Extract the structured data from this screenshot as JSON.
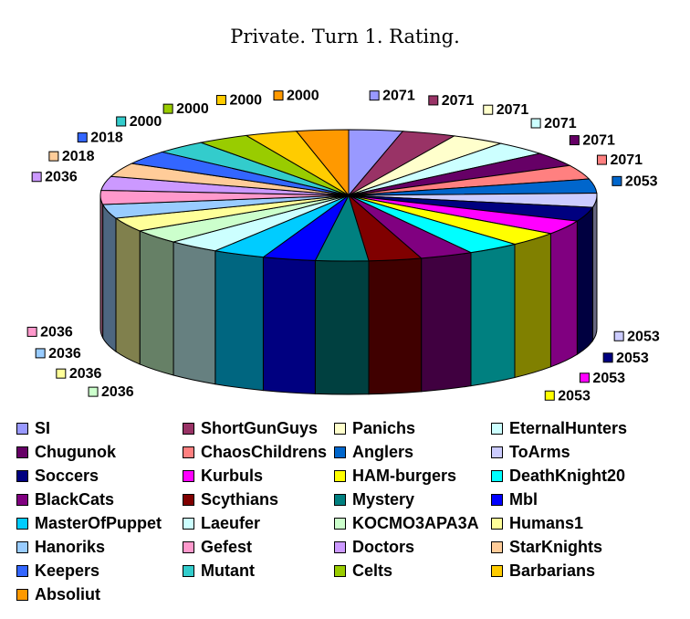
{
  "chart_data": {
    "type": "pie",
    "title": "Private. Turn 1. Rating.",
    "legend_position": "bottom",
    "three_d": true,
    "slices": [
      {
        "name": "SI",
        "value": 2071,
        "color": "#9999ff"
      },
      {
        "name": "ShortGunGuys",
        "value": 2071,
        "color": "#993366"
      },
      {
        "name": "Panichs",
        "value": 2071,
        "color": "#ffffcc"
      },
      {
        "name": "EternalHunters",
        "value": 2071,
        "color": "#ccffff"
      },
      {
        "name": "Chugunok",
        "value": 2071,
        "color": "#660066"
      },
      {
        "name": "ChaosChildrens",
        "value": 2071,
        "color": "#ff8080"
      },
      {
        "name": "Anglers",
        "value": 2053,
        "color": "#0066cc"
      },
      {
        "name": "ToArms",
        "value": 2053,
        "color": "#ccccff"
      },
      {
        "name": "Soccers",
        "value": 2053,
        "color": "#000080"
      },
      {
        "name": "Kurbuls",
        "value": 2053,
        "color": "#ff00ff"
      },
      {
        "name": "HAM-burgers",
        "value": 2053,
        "color": "#ffff00"
      },
      {
        "name": "DeathKnight20",
        "value": 2053,
        "color": "#00ffff"
      },
      {
        "name": "BlackCats",
        "value": 2053,
        "color": "#800080"
      },
      {
        "name": "Scythians",
        "value": 2036,
        "color": "#800000"
      },
      {
        "name": "Mystery",
        "value": 2036,
        "color": "#008080"
      },
      {
        "name": "Mbl",
        "value": 2036,
        "color": "#0000ff"
      },
      {
        "name": "MasterOfPuppet",
        "value": 2036,
        "color": "#00ccff"
      },
      {
        "name": "Laeufer",
        "value": 2036,
        "color": "#ccffff"
      },
      {
        "name": "KOCMO3APA3A",
        "value": 2036,
        "color": "#ccffcc"
      },
      {
        "name": "Humans1",
        "value": 2036,
        "color": "#ffff99"
      },
      {
        "name": "Hanoriks",
        "value": 2036,
        "color": "#99ccff"
      },
      {
        "name": "Gefest",
        "value": 2036,
        "color": "#ff99cc"
      },
      {
        "name": "Doctors",
        "value": 2036,
        "color": "#cc99ff"
      },
      {
        "name": "StarKnights",
        "value": 2018,
        "color": "#ffcc99"
      },
      {
        "name": "Keepers",
        "value": 2018,
        "color": "#3366ff"
      },
      {
        "name": "Mutant",
        "value": 2000,
        "color": "#33cccc"
      },
      {
        "name": "Celts",
        "value": 2000,
        "color": "#99cc00"
      },
      {
        "name": "Barbarians",
        "value": 2000,
        "color": "#ffcc00"
      },
      {
        "name": "Absoliut",
        "value": 2000,
        "color": "#ff9900"
      }
    ]
  }
}
